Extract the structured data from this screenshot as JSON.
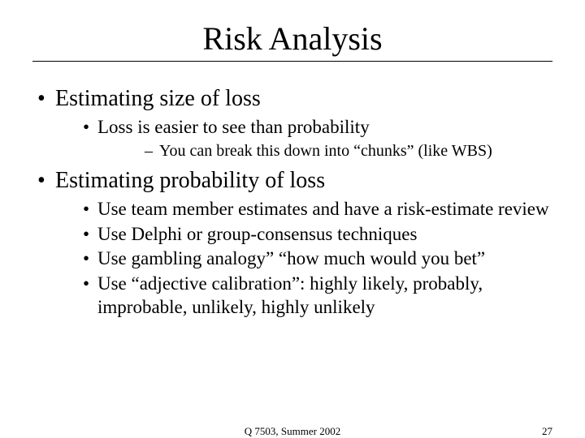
{
  "title": "Risk Analysis",
  "bullets_l1": [
    {
      "text": "Estimating size of loss",
      "children": [
        {
          "text": "Loss is easier to see than probability",
          "children": [
            {
              "text": "You can break this down into “chunks” (like WBS)"
            }
          ]
        }
      ]
    },
    {
      "text": "Estimating probability of loss",
      "children": [
        {
          "text": "Use team member estimates and have a risk-estimate review"
        },
        {
          "text": "Use Delphi or group-consensus techniques"
        },
        {
          "text": "Use gambling analogy” “how much would you bet”"
        },
        {
          "text": "Use “adjective calibration”: highly likely, probably, improbable, unlikely, highly unlikely"
        }
      ]
    }
  ],
  "footer": {
    "center": "Q 7503, Summer 2002",
    "page_number": "27"
  },
  "style": {
    "background_color": "#ffffff",
    "text_color": "#000000",
    "font_family": "Times New Roman",
    "title_fontsize": 40,
    "l1_fontsize": 28,
    "l2_fontsize": 23,
    "l3_fontsize": 20,
    "footer_fontsize": 13,
    "title_underline_color": "#000000"
  }
}
